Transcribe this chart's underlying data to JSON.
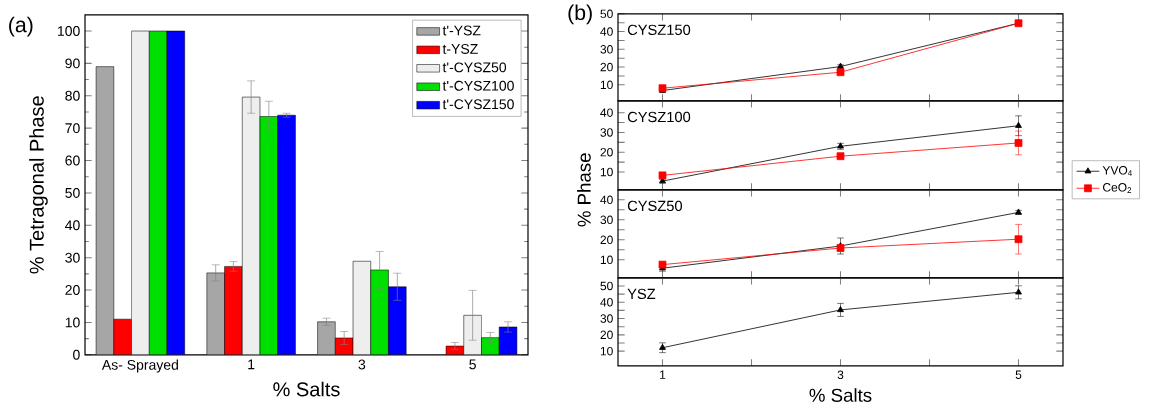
{
  "chart_data": [
    {
      "type": "bar",
      "title": "(a)",
      "xlabel": "% Salts",
      "ylabel": "% Tetragonal Phase",
      "categories": [
        "As- Sprayed",
        "1",
        "3",
        "5"
      ],
      "ylim": [
        0,
        105
      ],
      "yticks": [
        0,
        10,
        20,
        30,
        40,
        50,
        60,
        70,
        80,
        90,
        100
      ],
      "legend": "top right",
      "series": [
        {
          "name": "t'-YSZ",
          "color": "#a6a6a6",
          "values": [
            89,
            25.3,
            10.2,
            null
          ],
          "errors": [
            null,
            2.5,
            1.1,
            null
          ]
        },
        {
          "name": "t-YSZ",
          "color": "#ff0000",
          "values": [
            11,
            27.3,
            5.2,
            2.7
          ],
          "errors": [
            null,
            1.5,
            2,
            1.1
          ]
        },
        {
          "name": "t'-CYSZ50",
          "color": "#eeeeee",
          "values": [
            100,
            79.6,
            28.9,
            12.2
          ],
          "errors": [
            null,
            5,
            null,
            7.7
          ]
        },
        {
          "name": "t'-CYSZ100",
          "color": "#00e000",
          "values": [
            100,
            73.6,
            26.2,
            5.3
          ],
          "errors": [
            null,
            4.7,
            5.7,
            1.6
          ]
        },
        {
          "name": "t'-CYSZ150",
          "color": "#0000ff",
          "values": [
            100,
            74,
            21,
            8.6
          ],
          "errors": [
            null,
            0.6,
            4.2,
            1.6
          ]
        }
      ]
    },
    {
      "type": "line",
      "title": "(b)",
      "annotations": [
        "CYSZ150"
      ],
      "x": [
        1,
        3,
        5
      ],
      "xlim": [
        0.5,
        5.5
      ],
      "xticks": [
        1,
        3,
        5
      ],
      "ylim": [
        1,
        50
      ],
      "yticks": [
        10,
        20,
        30,
        40,
        50
      ],
      "tick_labels": "y",
      "series": [
        {
          "color": "#000000",
          "marker": "triangle",
          "values": [
            6.8,
            20.3,
            44.7
          ],
          "errors": [
            1,
            1,
            null
          ]
        },
        {
          "color": "#ff0000",
          "marker": "square",
          "values": [
            8.1,
            17.1,
            44.7
          ],
          "errors": [
            1.5,
            1,
            1
          ]
        }
      ]
    },
    {
      "type": "line",
      "ylabel": "% Phase",
      "annotations": [
        "CYSZ100"
      ],
      "x": [
        1,
        3,
        5
      ],
      "xlim": [
        0.5,
        5.5
      ],
      "xticks": [
        1,
        3,
        5
      ],
      "ylim": [
        1,
        46
      ],
      "yticks": [
        10,
        20,
        30,
        40
      ],
      "tick_labels": "y",
      "legend": "right",
      "series": [
        {
          "name": "YVO$_{4}$",
          "color": "#000000",
          "marker": "triangle",
          "values": [
            5.4,
            23,
            33.4
          ],
          "errors": [
            1,
            1.5,
            5
          ]
        },
        {
          "name": "CeO$_{2}$",
          "color": "#ff0000",
          "marker": "square",
          "values": [
            8.3,
            18,
            24.7
          ],
          "errors": [
            1,
            1,
            6
          ]
        }
      ]
    },
    {
      "type": "line",
      "annotations": [
        "CYSZ50"
      ],
      "x": [
        1,
        3,
        5
      ],
      "xlim": [
        0.5,
        5.5
      ],
      "xticks": [
        1,
        3,
        5
      ],
      "ylim": [
        1,
        45
      ],
      "yticks": [
        10,
        20,
        30,
        40
      ],
      "tick_labels": "y",
      "series": [
        {
          "color": "#000000",
          "marker": "triangle",
          "values": [
            5.8,
            16.9,
            33.7
          ],
          "errors": [
            1.5,
            4,
            1
          ]
        },
        {
          "color": "#ff0000",
          "marker": "square",
          "values": [
            7.6,
            15.9,
            20.3
          ],
          "errors": [
            1,
            null,
            7.4
          ]
        }
      ]
    },
    {
      "type": "line",
      "xlabel": "% Salts",
      "annotations": [
        "YSZ"
      ],
      "x": [
        1,
        3,
        5
      ],
      "xlim": [
        0.5,
        5.5
      ],
      "xticks": [
        1,
        3,
        5
      ],
      "ylim": [
        1,
        55
      ],
      "yticks": [
        10,
        20,
        30,
        40,
        50
      ],
      "series": [
        {
          "color": "#000000",
          "marker": "triangle",
          "values": [
            12.1,
            35.3,
            46.1
          ],
          "errors": [
            3,
            4,
            4
          ]
        }
      ]
    }
  ]
}
